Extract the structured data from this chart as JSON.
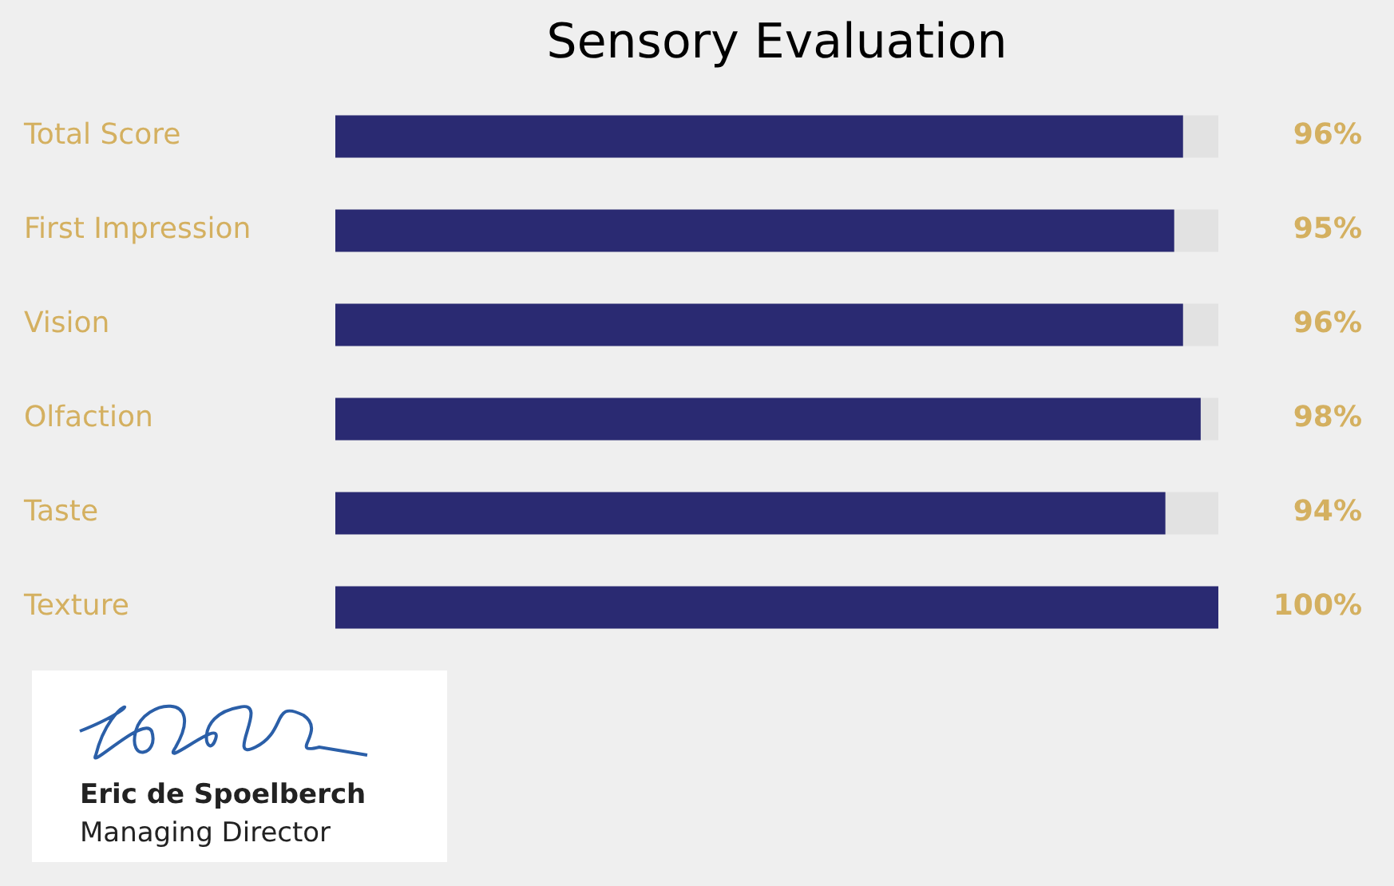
{
  "chart_data": {
    "type": "bar",
    "orientation": "horizontal",
    "title": "Sensory Evaluation",
    "categories": [
      "Total Score",
      "First Impression",
      "Vision",
      "Olfaction",
      "Taste",
      "Texture"
    ],
    "values": [
      96,
      95,
      96,
      98,
      94,
      100
    ],
    "value_labels": [
      "96%",
      "95%",
      "96%",
      "98%",
      "94%",
      "100%"
    ],
    "color": "#2a2a72",
    "annotations": [
      "Eric de Spoelberch",
      "Managing Director"
    ]
  }
}
